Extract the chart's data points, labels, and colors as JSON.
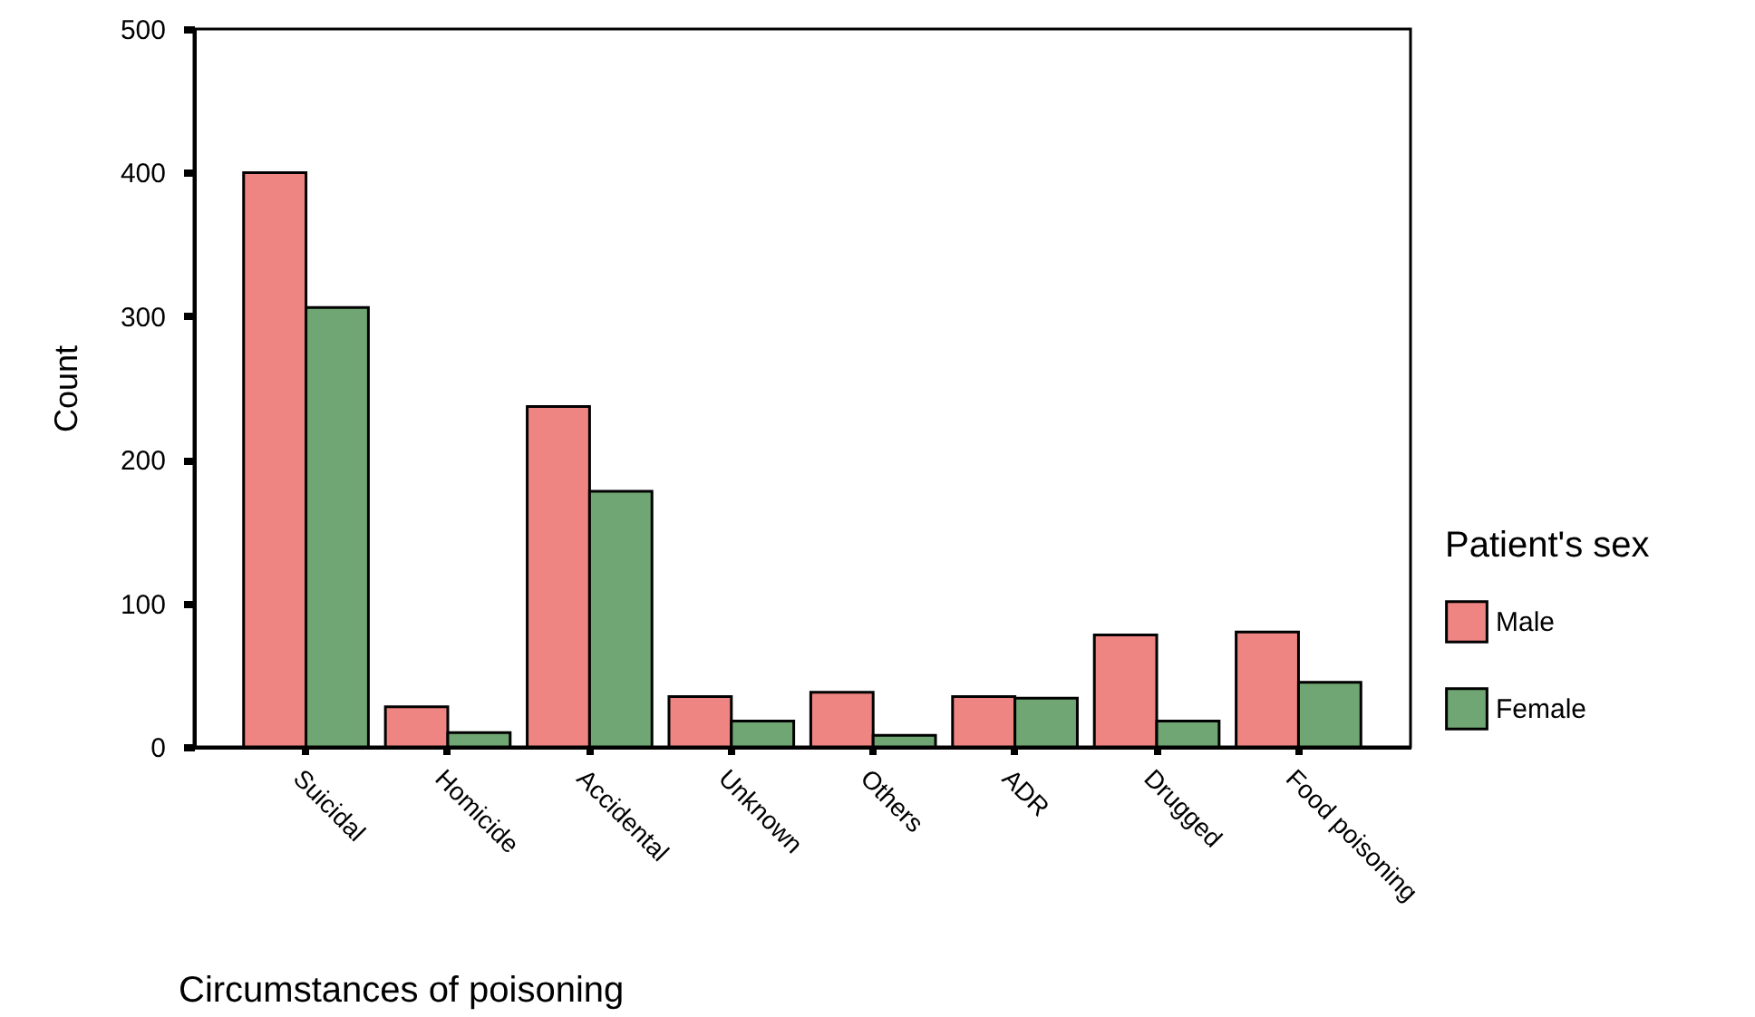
{
  "chart_data": {
    "type": "bar",
    "categories": [
      "Suicidal",
      "Homicide",
      "Accidental",
      "Unknown",
      "Others",
      "ADR",
      "Drugged",
      "Food poisoning"
    ],
    "series": [
      {
        "name": "Male",
        "color": "#ef8582",
        "values": [
          400,
          28,
          237,
          35,
          38,
          35,
          78,
          80
        ]
      },
      {
        "name": "Female",
        "color": "#6fa673",
        "values": [
          306,
          10,
          178,
          18,
          8,
          34,
          18,
          45
        ]
      }
    ],
    "xlabel": "Circumstances of poisoning",
    "ylabel": "Count",
    "legend_title": "Patient's sex",
    "ylim": [
      0,
      500
    ],
    "yticks": [
      0,
      100,
      200,
      300,
      400,
      500
    ],
    "grid": false,
    "legend": "right"
  }
}
